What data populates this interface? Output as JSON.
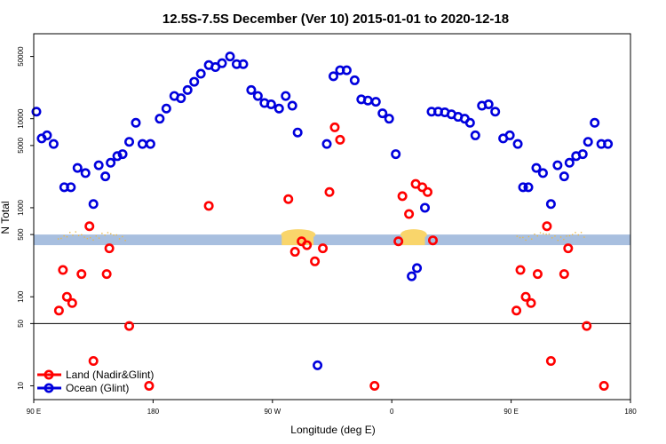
{
  "chart_data": {
    "type": "scatter",
    "title": "12.5S-7.5S December (Ver 10)   2015-01-01 to 2020-12-18",
    "xlabel": "Longitude (deg E)",
    "ylabel": "N Total",
    "x_ticks": [
      {
        "value": 90,
        "label": "90 E"
      },
      {
        "value": 180,
        "label": "180"
      },
      {
        "value": 270,
        "label": "90 W"
      },
      {
        "value": 360,
        "label": "0"
      },
      {
        "value": 450,
        "label": "90 E"
      },
      {
        "value": 540,
        "label": "180"
      }
    ],
    "y_ticks": [
      {
        "value": 10,
        "label": "10"
      },
      {
        "value": 50,
        "label": "50"
      },
      {
        "value": 100,
        "label": "100"
      },
      {
        "value": 500,
        "label": "500"
      },
      {
        "value": 1000,
        "label": "1000"
      },
      {
        "value": 5000,
        "label": "5000"
      },
      {
        "value": 10000,
        "label": "10000"
      },
      {
        "value": 50000,
        "label": "50000"
      }
    ],
    "xlim": [
      90,
      540
    ],
    "ylim": [
      7,
      90000
    ],
    "y_scale": "log",
    "reference_line_y": 50,
    "land_band_y": [
      380,
      500
    ],
    "colors": {
      "land": "#ff0000",
      "ocean": "#0000dd",
      "band": "#a8bfdf",
      "land_fill": "#f9d56b"
    },
    "legend_position": "bottom-left",
    "series": [
      {
        "name": "Land (Nadir&Glint)",
        "color": "#ff0000",
        "points": [
          [
            109,
            70
          ],
          [
            112,
            200
          ],
          [
            115,
            100
          ],
          [
            119,
            85
          ],
          [
            126,
            180
          ],
          [
            132,
            620
          ],
          [
            135,
            19
          ],
          [
            145,
            180
          ],
          [
            147,
            350
          ],
          [
            162,
            47
          ],
          [
            177,
            10
          ],
          [
            222,
            1050
          ],
          [
            282,
            1250
          ],
          [
            287,
            320
          ],
          [
            292,
            420
          ],
          [
            296,
            380
          ],
          [
            302,
            250
          ],
          [
            308,
            350
          ],
          [
            313,
            1500
          ],
          [
            317,
            8000
          ],
          [
            321,
            5800
          ],
          [
            347,
            10
          ],
          [
            365,
            420
          ],
          [
            368,
            1350
          ],
          [
            373,
            850
          ],
          [
            378,
            1850
          ],
          [
            383,
            1700
          ],
          [
            387,
            1500
          ],
          [
            391,
            430
          ],
          [
            454,
            70
          ],
          [
            457,
            200
          ],
          [
            461,
            100
          ],
          [
            465,
            85
          ],
          [
            470,
            180
          ],
          [
            477,
            620
          ],
          [
            480,
            19
          ],
          [
            490,
            180
          ],
          [
            493,
            350
          ],
          [
            507,
            47
          ],
          [
            520,
            10
          ]
        ]
      },
      {
        "name": "Ocean (Glint)",
        "color": "#0000dd",
        "points": [
          [
            92,
            12000
          ],
          [
            96,
            6000
          ],
          [
            100,
            6500
          ],
          [
            105,
            5200
          ],
          [
            113,
            1700
          ],
          [
            118,
            1700
          ],
          [
            123,
            2800
          ],
          [
            129,
            2450
          ],
          [
            135,
            1100
          ],
          [
            139,
            3000
          ],
          [
            144,
            2250
          ],
          [
            148,
            3200
          ],
          [
            153,
            3800
          ],
          [
            157,
            4000
          ],
          [
            162,
            5500
          ],
          [
            167,
            9000
          ],
          [
            172,
            5200
          ],
          [
            178,
            5200
          ],
          [
            185,
            10000
          ],
          [
            190,
            13000
          ],
          [
            196,
            18000
          ],
          [
            201,
            17000
          ],
          [
            206,
            21000
          ],
          [
            211,
            26000
          ],
          [
            216,
            32000
          ],
          [
            222,
            40000
          ],
          [
            227,
            38000
          ],
          [
            232,
            42000
          ],
          [
            238,
            50000
          ],
          [
            243,
            41000
          ],
          [
            248,
            41000
          ],
          [
            254,
            21000
          ],
          [
            259,
            18000
          ],
          [
            264,
            15000
          ],
          [
            269,
            14500
          ],
          [
            275,
            13000
          ],
          [
            280,
            18000
          ],
          [
            285,
            14000
          ],
          [
            289,
            7000
          ],
          [
            304,
            17
          ],
          [
            311,
            5200
          ],
          [
            316,
            30000
          ],
          [
            321,
            35000
          ],
          [
            326,
            35000
          ],
          [
            332,
            27000
          ],
          [
            337,
            16500
          ],
          [
            342,
            16000
          ],
          [
            348,
            15500
          ],
          [
            353,
            11500
          ],
          [
            358,
            10000
          ],
          [
            363,
            4000
          ],
          [
            375,
            170
          ],
          [
            379,
            210
          ],
          [
            385,
            1000
          ],
          [
            390,
            12000
          ],
          [
            395,
            12000
          ],
          [
            400,
            11800
          ],
          [
            405,
            11200
          ],
          [
            410,
            10500
          ],
          [
            415,
            10000
          ],
          [
            419,
            9000
          ],
          [
            423,
            6500
          ],
          [
            428,
            14000
          ],
          [
            433,
            14500
          ],
          [
            438,
            12000
          ],
          [
            444,
            6000
          ],
          [
            449,
            6500
          ],
          [
            455,
            5200
          ],
          [
            459,
            1700
          ],
          [
            463,
            1700
          ],
          [
            469,
            2800
          ],
          [
            474,
            2450
          ],
          [
            480,
            1100
          ],
          [
            485,
            3000
          ],
          [
            490,
            2250
          ],
          [
            494,
            3200
          ],
          [
            499,
            3800
          ],
          [
            504,
            4000
          ],
          [
            508,
            5500
          ],
          [
            513,
            9000
          ],
          [
            518,
            5200
          ],
          [
            523,
            5200
          ]
        ]
      }
    ]
  }
}
